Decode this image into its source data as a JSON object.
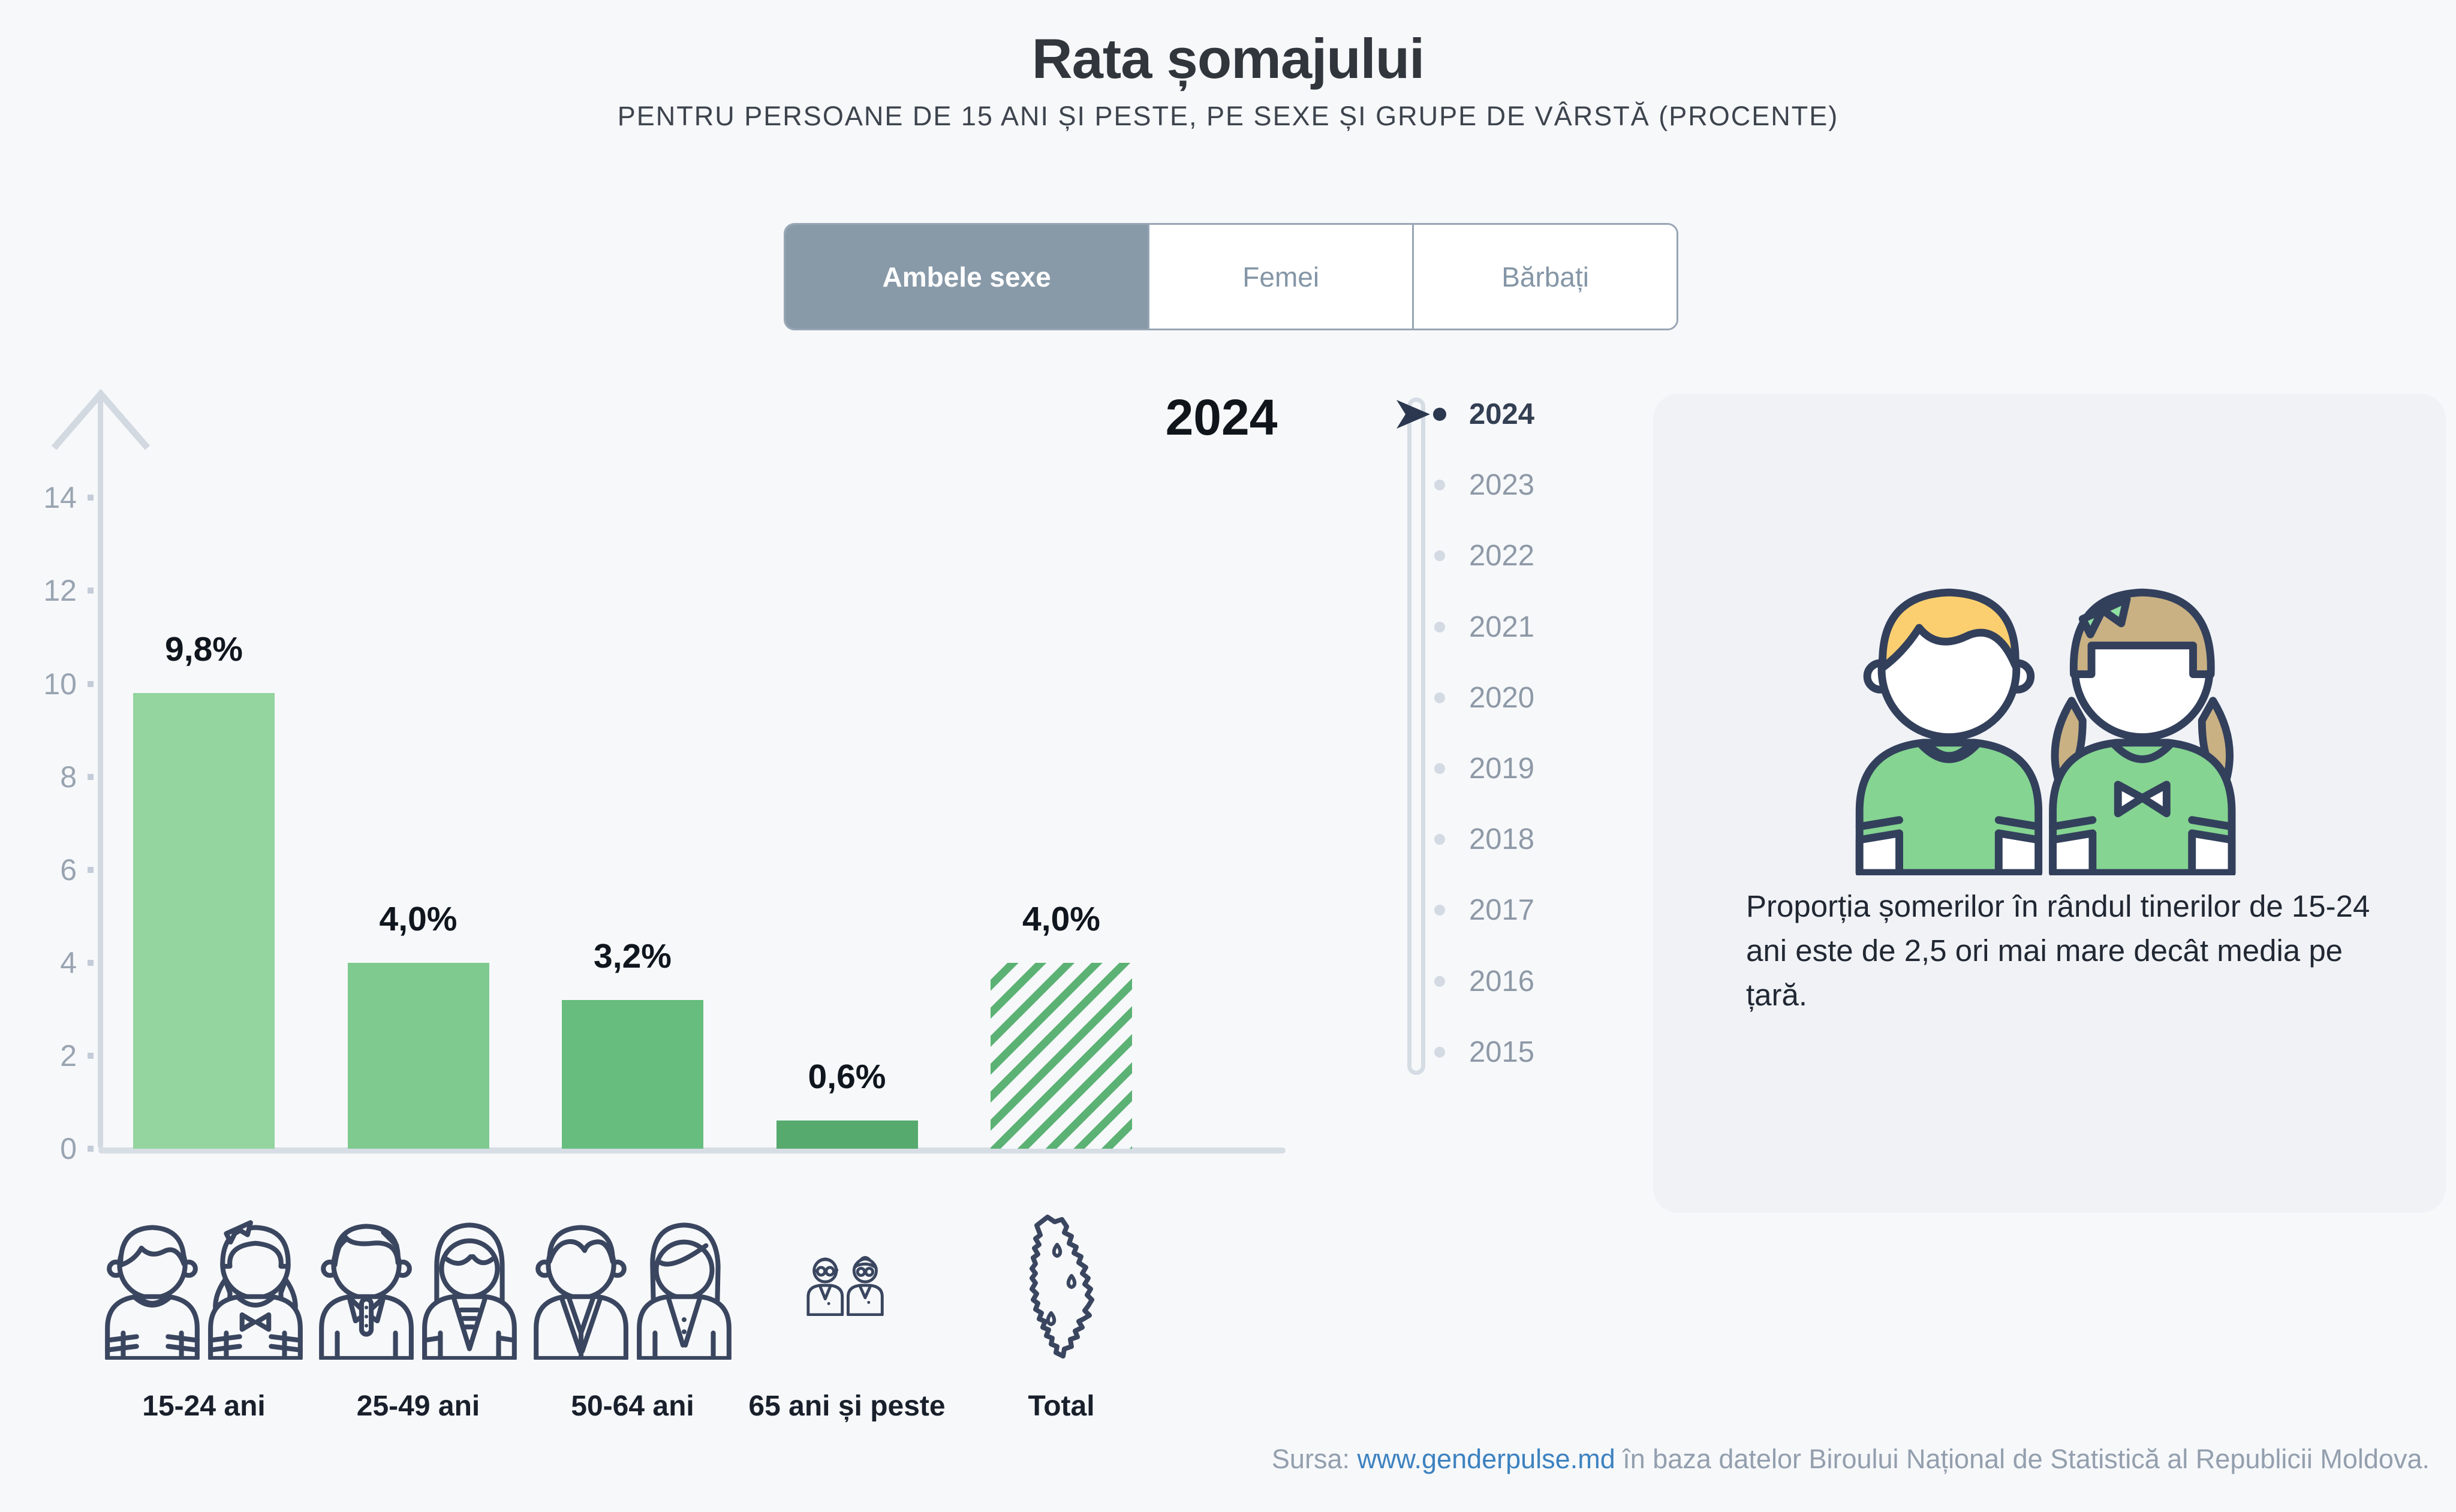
{
  "header": {
    "title": "Rata șomajului",
    "subtitle": "PENTRU PERSOANE DE 15 ANI ȘI PESTE, PE SEXE ȘI GRUPE DE VÂRSTĂ (PROCENTE)"
  },
  "tabs": {
    "items": [
      {
        "label": "Ambele sexe",
        "active": true
      },
      {
        "label": "Femei",
        "active": false
      },
      {
        "label": "Bărbați",
        "active": false
      }
    ]
  },
  "big_year_label": "2024",
  "chart_data": {
    "type": "bar",
    "title": "Rata șomajului",
    "sex_filter": "Ambele sexe",
    "year": "2024",
    "categories": [
      "15-24 ani",
      "25-49 ani",
      "50-64 ani",
      "65 ani și peste",
      "Total"
    ],
    "values": [
      9.8,
      4.0,
      3.2,
      0.6,
      4.0
    ],
    "value_labels": [
      "9,8%",
      "4,0%",
      "3,2%",
      "0,6%",
      "4,0%"
    ],
    "bar_colors": [
      "#93d49f",
      "#7eca8f",
      "#66bd7e",
      "#56aa6e",
      "#5cb274"
    ],
    "total_bar_hatched": true,
    "xlabel": "",
    "ylabel": "",
    "ylim": [
      0,
      15
    ],
    "yticks": [
      0,
      2,
      4,
      6,
      8,
      10,
      12,
      14
    ],
    "grid": false,
    "legend": null
  },
  "timeline": {
    "selected": "2024",
    "years": [
      "2024",
      "2023",
      "2022",
      "2021",
      "2020",
      "2019",
      "2018",
      "2017",
      "2016",
      "2015"
    ]
  },
  "info_card": {
    "text": "Proporția șomerilor în rândul tinerilor de 15-24 ani este de 2,5 ori mai mare decât media pe țară."
  },
  "footer": {
    "prefix": "Sursa:",
    "link_text": "www.genderpulse.md",
    "suffix": "în baza datelor Biroului Național de Statistică al Republicii Moldova."
  },
  "colors": {
    "page_bg": "#f7f8fa",
    "card_bg": "#f0f2f6",
    "active_tab_bg": "#8899a8",
    "axis_gray": "#d3dae2",
    "selected_navy": "#2c3850",
    "icon_outline_navy": "#3a465f",
    "link_blue": "#3d82c0",
    "hatch_green": "#5cb274",
    "boy_hair_yellow": "#fbcf70",
    "girl_hair_tan": "#c9b184",
    "shirt_green": "#85d492",
    "bow_green": "#8fe0a2"
  }
}
